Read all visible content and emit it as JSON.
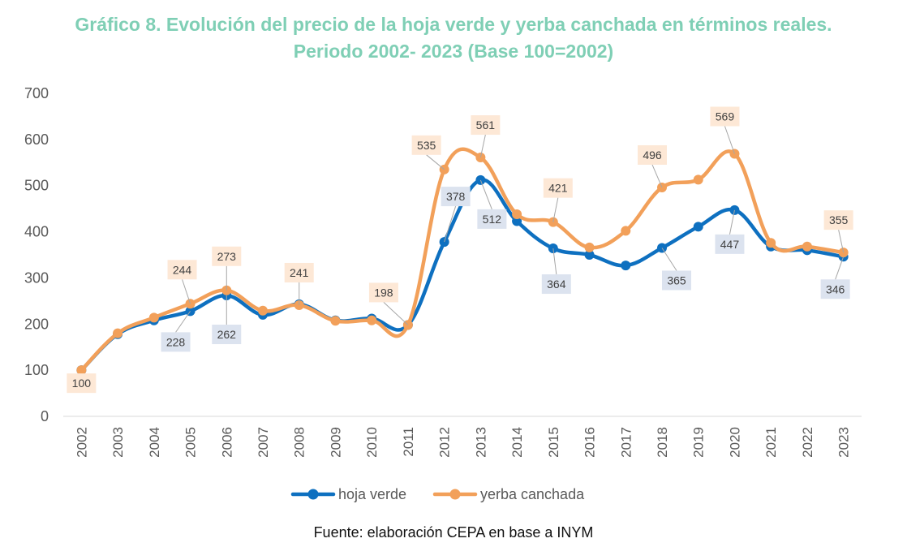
{
  "title_line1": "Gráfico 8. Evolución del precio de la hoja verde y yerba canchada en términos reales.",
  "title_line2": "Periodo 2002- 2023 (Base 100=2002)",
  "source": "Fuente: elaboración CEPA en base a INYM",
  "colors": {
    "title": "#7fcfb5",
    "hoja": "#0e70c0",
    "yerba": "#f2a05a",
    "label_blue_bg": "#dce3ef",
    "label_orange_bg": "#fde8d6",
    "axis_text": "#595959",
    "axis_line": "#d9d9d9"
  },
  "chart_data": {
    "type": "line",
    "title": "Gráfico 8. Evolución del precio de la hoja verde y yerba canchada en términos reales. Periodo 2002- 2023 (Base 100=2002)",
    "x": [
      "2002",
      "2003",
      "2004",
      "2005",
      "2006",
      "2007",
      "2008",
      "2009",
      "2010",
      "2011",
      "2012",
      "2013",
      "2014",
      "2015",
      "2016",
      "2017",
      "2018",
      "2019",
      "2020",
      "2021",
      "2022",
      "2023"
    ],
    "ylim": [
      0,
      700
    ],
    "yticks": [
      0,
      100,
      200,
      300,
      400,
      500,
      600,
      700
    ],
    "grid": false,
    "legend_position": "bottom",
    "series": [
      {
        "name": "hoja verde",
        "color": "#0e70c0",
        "values": [
          100,
          178,
          208,
          228,
          262,
          220,
          243,
          208,
          212,
          198,
          378,
          512,
          423,
          364,
          350,
          327,
          365,
          411,
          447,
          368,
          360,
          346
        ],
        "labels": [
          {
            "index": 3,
            "text": "228"
          },
          {
            "index": 4,
            "text": "262"
          },
          {
            "index": 11,
            "text": "512"
          },
          {
            "index": 10,
            "text": "378"
          },
          {
            "index": 13,
            "text": "364"
          },
          {
            "index": 16,
            "text": "365"
          },
          {
            "index": 18,
            "text": "447"
          },
          {
            "index": 21,
            "text": "346"
          }
        ]
      },
      {
        "name": "yerba canchada",
        "color": "#f2a05a",
        "values": [
          100,
          180,
          214,
          244,
          273,
          229,
          241,
          207,
          208,
          198,
          535,
          561,
          438,
          421,
          366,
          402,
          496,
          513,
          569,
          376,
          368,
          355
        ],
        "labels": [
          {
            "index": 0,
            "text": "100"
          },
          {
            "index": 3,
            "text": "244"
          },
          {
            "index": 4,
            "text": "273"
          },
          {
            "index": 6,
            "text": "241"
          },
          {
            "index": 9,
            "text": "198"
          },
          {
            "index": 10,
            "text": "535"
          },
          {
            "index": 11,
            "text": "561"
          },
          {
            "index": 13,
            "text": "421"
          },
          {
            "index": 16,
            "text": "496"
          },
          {
            "index": 18,
            "text": "569"
          },
          {
            "index": 21,
            "text": "355"
          }
        ]
      }
    ]
  }
}
